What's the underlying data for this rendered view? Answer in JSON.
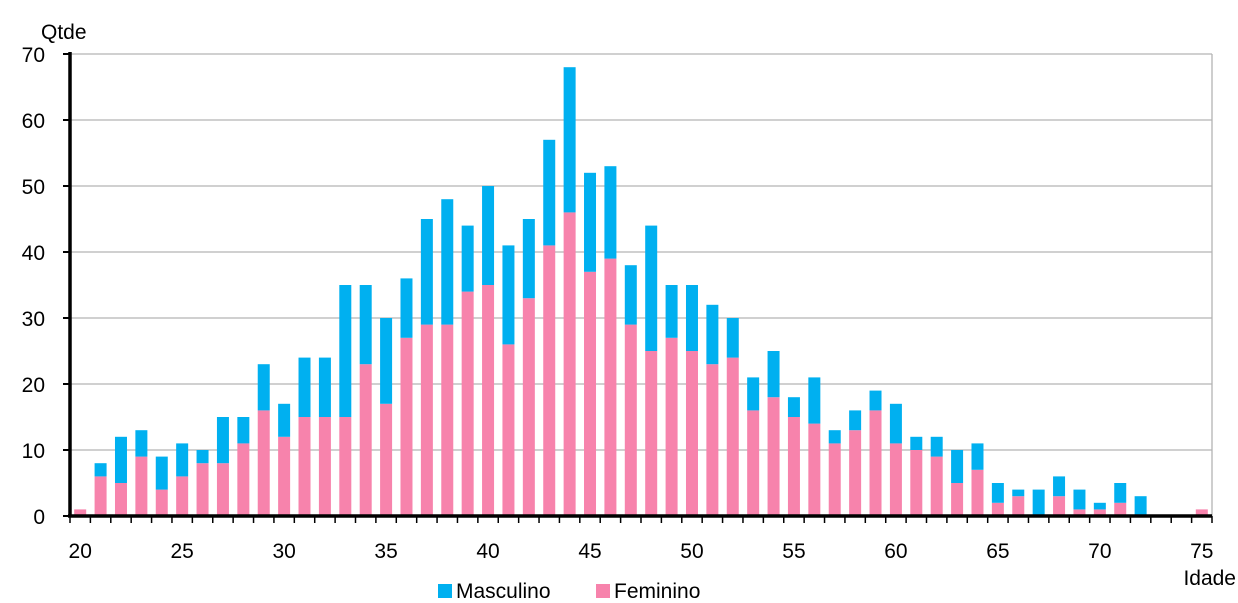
{
  "chart_data": {
    "type": "bar",
    "stacked": true,
    "title": "",
    "xlabel": "Idade",
    "ylabel": "Qtde",
    "ylim": [
      0,
      70
    ],
    "yticks": [
      0,
      10,
      20,
      30,
      40,
      50,
      60,
      70
    ],
    "xlim": [
      20,
      76
    ],
    "xticks": [
      20,
      25,
      30,
      35,
      40,
      45,
      50,
      55,
      60,
      65,
      70,
      75
    ],
    "grid": "horizontal",
    "legend_position": "bottom",
    "x": [
      20,
      21,
      22,
      23,
      24,
      25,
      26,
      27,
      28,
      29,
      30,
      31,
      32,
      33,
      34,
      35,
      36,
      37,
      38,
      39,
      40,
      41,
      42,
      43,
      44,
      45,
      46,
      47,
      48,
      49,
      50,
      51,
      52,
      53,
      54,
      55,
      56,
      57,
      58,
      59,
      60,
      61,
      62,
      63,
      64,
      65,
      66,
      67,
      68,
      69,
      70,
      71,
      72,
      73,
      74,
      75
    ],
    "series": [
      {
        "name": "Feminino",
        "color": "#F783AC",
        "values": [
          1,
          6,
          5,
          9,
          4,
          6,
          8,
          8,
          11,
          16,
          12,
          15,
          15,
          15,
          23,
          17,
          27,
          29,
          29,
          34,
          35,
          26,
          33,
          41,
          46,
          37,
          39,
          29,
          25,
          27,
          25,
          23,
          24,
          16,
          18,
          15,
          14,
          11,
          13,
          16,
          11,
          10,
          9,
          5,
          7,
          2,
          3,
          0,
          3,
          1,
          1,
          2,
          0,
          0,
          0,
          1
        ]
      },
      {
        "name": "Masculino",
        "color": "#00B0F0",
        "values": [
          0,
          2,
          7,
          4,
          5,
          5,
          2,
          7,
          4,
          7,
          5,
          9,
          9,
          20,
          12,
          13,
          9,
          16,
          19,
          10,
          15,
          15,
          12,
          16,
          22,
          15,
          14,
          9,
          19,
          8,
          10,
          9,
          6,
          5,
          7,
          3,
          7,
          2,
          3,
          3,
          6,
          2,
          3,
          5,
          4,
          3,
          1,
          4,
          3,
          3,
          1,
          3,
          3,
          0,
          0,
          0
        ]
      }
    ],
    "legend": [
      {
        "label": "Masculino",
        "color": "#00B0F0"
      },
      {
        "label": "Feminino",
        "color": "#F783AC"
      }
    ]
  }
}
